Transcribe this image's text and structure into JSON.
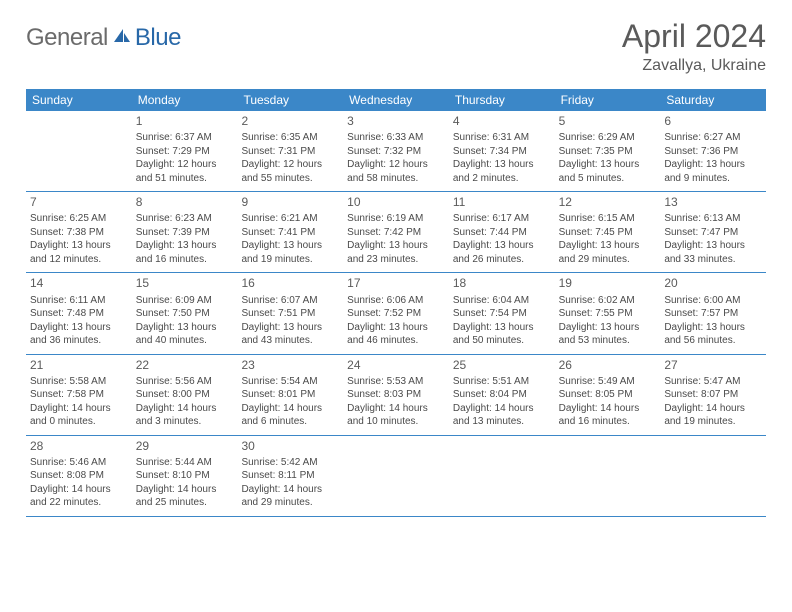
{
  "logo": {
    "part1": "General",
    "part2": "Blue"
  },
  "title": "April 2024",
  "location": "Zavallya, Ukraine",
  "colors": {
    "header_bg": "#3b87c8",
    "header_text": "#ffffff",
    "logo_gray": "#6b6b6b",
    "logo_blue": "#2868a8",
    "text_gray": "#5a5a5a",
    "cell_text": "#4a4a4a",
    "border": "#3b87c8",
    "background": "#ffffff"
  },
  "weekdays": [
    "Sunday",
    "Monday",
    "Tuesday",
    "Wednesday",
    "Thursday",
    "Friday",
    "Saturday"
  ],
  "weeks": [
    [
      {
        "day": "",
        "sunrise": "",
        "sunset": "",
        "daylight": ""
      },
      {
        "day": "1",
        "sunrise": "Sunrise: 6:37 AM",
        "sunset": "Sunset: 7:29 PM",
        "daylight": "Daylight: 12 hours and 51 minutes."
      },
      {
        "day": "2",
        "sunrise": "Sunrise: 6:35 AM",
        "sunset": "Sunset: 7:31 PM",
        "daylight": "Daylight: 12 hours and 55 minutes."
      },
      {
        "day": "3",
        "sunrise": "Sunrise: 6:33 AM",
        "sunset": "Sunset: 7:32 PM",
        "daylight": "Daylight: 12 hours and 58 minutes."
      },
      {
        "day": "4",
        "sunrise": "Sunrise: 6:31 AM",
        "sunset": "Sunset: 7:34 PM",
        "daylight": "Daylight: 13 hours and 2 minutes."
      },
      {
        "day": "5",
        "sunrise": "Sunrise: 6:29 AM",
        "sunset": "Sunset: 7:35 PM",
        "daylight": "Daylight: 13 hours and 5 minutes."
      },
      {
        "day": "6",
        "sunrise": "Sunrise: 6:27 AM",
        "sunset": "Sunset: 7:36 PM",
        "daylight": "Daylight: 13 hours and 9 minutes."
      }
    ],
    [
      {
        "day": "7",
        "sunrise": "Sunrise: 6:25 AM",
        "sunset": "Sunset: 7:38 PM",
        "daylight": "Daylight: 13 hours and 12 minutes."
      },
      {
        "day": "8",
        "sunrise": "Sunrise: 6:23 AM",
        "sunset": "Sunset: 7:39 PM",
        "daylight": "Daylight: 13 hours and 16 minutes."
      },
      {
        "day": "9",
        "sunrise": "Sunrise: 6:21 AM",
        "sunset": "Sunset: 7:41 PM",
        "daylight": "Daylight: 13 hours and 19 minutes."
      },
      {
        "day": "10",
        "sunrise": "Sunrise: 6:19 AM",
        "sunset": "Sunset: 7:42 PM",
        "daylight": "Daylight: 13 hours and 23 minutes."
      },
      {
        "day": "11",
        "sunrise": "Sunrise: 6:17 AM",
        "sunset": "Sunset: 7:44 PM",
        "daylight": "Daylight: 13 hours and 26 minutes."
      },
      {
        "day": "12",
        "sunrise": "Sunrise: 6:15 AM",
        "sunset": "Sunset: 7:45 PM",
        "daylight": "Daylight: 13 hours and 29 minutes."
      },
      {
        "day": "13",
        "sunrise": "Sunrise: 6:13 AM",
        "sunset": "Sunset: 7:47 PM",
        "daylight": "Daylight: 13 hours and 33 minutes."
      }
    ],
    [
      {
        "day": "14",
        "sunrise": "Sunrise: 6:11 AM",
        "sunset": "Sunset: 7:48 PM",
        "daylight": "Daylight: 13 hours and 36 minutes."
      },
      {
        "day": "15",
        "sunrise": "Sunrise: 6:09 AM",
        "sunset": "Sunset: 7:50 PM",
        "daylight": "Daylight: 13 hours and 40 minutes."
      },
      {
        "day": "16",
        "sunrise": "Sunrise: 6:07 AM",
        "sunset": "Sunset: 7:51 PM",
        "daylight": "Daylight: 13 hours and 43 minutes."
      },
      {
        "day": "17",
        "sunrise": "Sunrise: 6:06 AM",
        "sunset": "Sunset: 7:52 PM",
        "daylight": "Daylight: 13 hours and 46 minutes."
      },
      {
        "day": "18",
        "sunrise": "Sunrise: 6:04 AM",
        "sunset": "Sunset: 7:54 PM",
        "daylight": "Daylight: 13 hours and 50 minutes."
      },
      {
        "day": "19",
        "sunrise": "Sunrise: 6:02 AM",
        "sunset": "Sunset: 7:55 PM",
        "daylight": "Daylight: 13 hours and 53 minutes."
      },
      {
        "day": "20",
        "sunrise": "Sunrise: 6:00 AM",
        "sunset": "Sunset: 7:57 PM",
        "daylight": "Daylight: 13 hours and 56 minutes."
      }
    ],
    [
      {
        "day": "21",
        "sunrise": "Sunrise: 5:58 AM",
        "sunset": "Sunset: 7:58 PM",
        "daylight": "Daylight: 14 hours and 0 minutes."
      },
      {
        "day": "22",
        "sunrise": "Sunrise: 5:56 AM",
        "sunset": "Sunset: 8:00 PM",
        "daylight": "Daylight: 14 hours and 3 minutes."
      },
      {
        "day": "23",
        "sunrise": "Sunrise: 5:54 AM",
        "sunset": "Sunset: 8:01 PM",
        "daylight": "Daylight: 14 hours and 6 minutes."
      },
      {
        "day": "24",
        "sunrise": "Sunrise: 5:53 AM",
        "sunset": "Sunset: 8:03 PM",
        "daylight": "Daylight: 14 hours and 10 minutes."
      },
      {
        "day": "25",
        "sunrise": "Sunrise: 5:51 AM",
        "sunset": "Sunset: 8:04 PM",
        "daylight": "Daylight: 14 hours and 13 minutes."
      },
      {
        "day": "26",
        "sunrise": "Sunrise: 5:49 AM",
        "sunset": "Sunset: 8:05 PM",
        "daylight": "Daylight: 14 hours and 16 minutes."
      },
      {
        "day": "27",
        "sunrise": "Sunrise: 5:47 AM",
        "sunset": "Sunset: 8:07 PM",
        "daylight": "Daylight: 14 hours and 19 minutes."
      }
    ],
    [
      {
        "day": "28",
        "sunrise": "Sunrise: 5:46 AM",
        "sunset": "Sunset: 8:08 PM",
        "daylight": "Daylight: 14 hours and 22 minutes."
      },
      {
        "day": "29",
        "sunrise": "Sunrise: 5:44 AM",
        "sunset": "Sunset: 8:10 PM",
        "daylight": "Daylight: 14 hours and 25 minutes."
      },
      {
        "day": "30",
        "sunrise": "Sunrise: 5:42 AM",
        "sunset": "Sunset: 8:11 PM",
        "daylight": "Daylight: 14 hours and 29 minutes."
      },
      {
        "day": "",
        "sunrise": "",
        "sunset": "",
        "daylight": ""
      },
      {
        "day": "",
        "sunrise": "",
        "sunset": "",
        "daylight": ""
      },
      {
        "day": "",
        "sunrise": "",
        "sunset": "",
        "daylight": ""
      },
      {
        "day": "",
        "sunrise": "",
        "sunset": "",
        "daylight": ""
      }
    ]
  ]
}
